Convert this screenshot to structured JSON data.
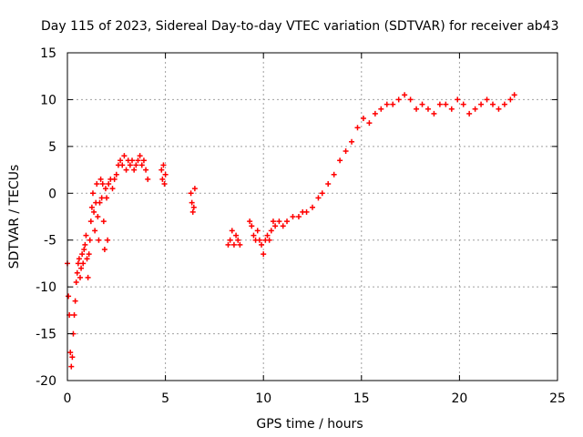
{
  "chart_data": {
    "type": "scatter",
    "title": "Day 115 of 2023, Sidereal Day-to-day VTEC variation (SDTVAR) for receiver ab43",
    "xlabel": "GPS time / hours",
    "ylabel": "SDTVAR / TECUs",
    "xlim": [
      0,
      25
    ],
    "ylim": [
      -20,
      15
    ],
    "xticks": [
      0,
      5,
      10,
      15,
      20,
      25
    ],
    "yticks": [
      -20,
      -15,
      -10,
      -5,
      0,
      5,
      10,
      15
    ],
    "xtick_labels": [
      "0",
      "5",
      "10",
      "15",
      "20",
      "25"
    ],
    "ytick_labels": [
      "-20",
      "-15",
      "-10",
      "-5",
      "0",
      "5",
      "10",
      "15"
    ],
    "grid": true,
    "marker": "+",
    "color": "#ff0000",
    "series": [
      {
        "name": "SDTVAR",
        "x": [
          0.0,
          0.05,
          0.1,
          0.15,
          0.2,
          0.25,
          0.3,
          0.35,
          0.4,
          0.45,
          0.5,
          0.55,
          0.6,
          0.65,
          0.7,
          0.75,
          0.8,
          0.85,
          0.9,
          0.95,
          1.0,
          1.05,
          1.1,
          1.15,
          1.2,
          1.25,
          1.3,
          1.35,
          1.4,
          1.45,
          1.5,
          1.55,
          1.6,
          1.65,
          1.7,
          1.75,
          1.8,
          1.85,
          1.9,
          1.95,
          2.0,
          2.05,
          2.1,
          2.2,
          2.3,
          2.4,
          2.5,
          2.6,
          2.7,
          2.8,
          2.9,
          3.0,
          3.1,
          3.2,
          3.3,
          3.4,
          3.5,
          3.6,
          3.7,
          3.8,
          3.9,
          4.0,
          4.1,
          4.8,
          4.85,
          4.9,
          4.95,
          5.0,
          6.3,
          6.35,
          6.4,
          6.45,
          6.5,
          8.2,
          8.3,
          8.4,
          8.5,
          8.6,
          8.7,
          8.8,
          9.3,
          9.4,
          9.5,
          9.6,
          9.7,
          9.8,
          9.9,
          10.0,
          10.1,
          10.2,
          10.3,
          10.4,
          10.5,
          10.6,
          10.8,
          11.0,
          11.2,
          11.5,
          11.8,
          12.0,
          12.2,
          12.5,
          12.8,
          13.0,
          13.3,
          13.6,
          13.9,
          14.2,
          14.5,
          14.8,
          15.1,
          15.4,
          15.7,
          16.0,
          16.3,
          16.6,
          16.9,
          17.2,
          17.5,
          17.8,
          18.1,
          18.4,
          18.7,
          19.0,
          19.3,
          19.6,
          19.9,
          20.2,
          20.5,
          20.8,
          21.1,
          21.4,
          21.7,
          22.0,
          22.3,
          22.6,
          22.8
        ],
        "y": [
          -7.5,
          -11.0,
          -13.0,
          -17.0,
          -18.5,
          -17.5,
          -15.0,
          -13.0,
          -11.5,
          -9.5,
          -8.5,
          -7.5,
          -7.0,
          -9.0,
          -8.0,
          -6.5,
          -7.5,
          -6.0,
          -5.5,
          -4.5,
          -7.0,
          -9.0,
          -6.5,
          -5.0,
          -3.0,
          -1.5,
          0.0,
          -2.0,
          -4.0,
          -1.0,
          1.0,
          -2.5,
          -5.0,
          -1.0,
          1.5,
          -0.5,
          1.0,
          -3.0,
          -6.0,
          0.5,
          -0.5,
          -5.0,
          1.0,
          1.5,
          0.5,
          1.5,
          2.0,
          3.0,
          3.5,
          3.0,
          4.0,
          2.5,
          3.5,
          3.0,
          3.5,
          2.5,
          3.0,
          3.5,
          4.0,
          3.0,
          3.5,
          2.5,
          1.5,
          2.5,
          1.5,
          3.0,
          1.0,
          2.0,
          0.0,
          -1.0,
          -2.0,
          -1.5,
          0.5,
          -5.5,
          -5.0,
          -4.0,
          -5.5,
          -4.5,
          -5.0,
          -5.5,
          -3.0,
          -3.5,
          -4.5,
          -5.0,
          -4.0,
          -5.0,
          -5.5,
          -6.5,
          -5.0,
          -4.5,
          -5.0,
          -4.0,
          -3.0,
          -3.5,
          -3.0,
          -3.5,
          -3.0,
          -2.5,
          -2.5,
          -2.0,
          -2.0,
          -1.5,
          -0.5,
          0.0,
          1.0,
          2.0,
          3.5,
          4.5,
          5.5,
          7.0,
          8.0,
          7.5,
          8.5,
          9.0,
          9.5,
          9.5,
          10.0,
          10.5,
          10.0,
          9.0,
          9.5,
          9.0,
          8.5,
          9.5,
          9.5,
          9.0,
          10.0,
          9.5,
          8.5,
          9.0,
          9.5,
          10.0,
          9.5,
          9.0,
          9.5,
          10.0,
          10.5
        ]
      }
    ]
  }
}
